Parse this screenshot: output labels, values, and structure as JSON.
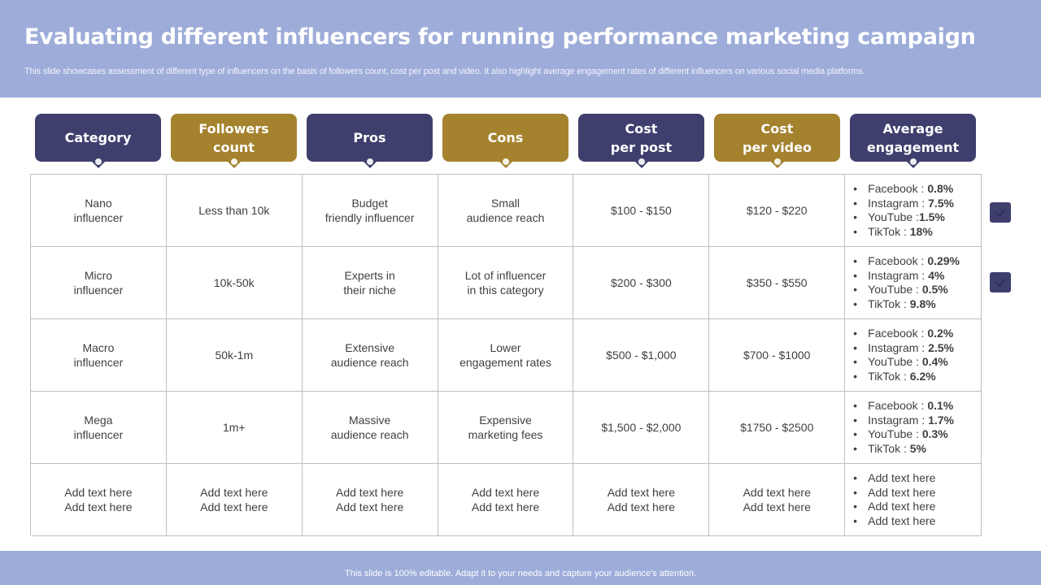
{
  "title": "Evaluating different influencers for running performance marketing campaign",
  "subtitle": "This slide showcases assessment of different type  of influencers on the basis of followers count, cost per post and video. It also highlight average engagement rates of different influencers on various social media platforms.",
  "footer": "This slide is 100% editable. Adapt it to your needs and capture your audience's attention.",
  "colors": {
    "header_band": "#9dacd9",
    "navy": "#3f3f6e",
    "gold": "#a4822e"
  },
  "columns": [
    {
      "label": "Category",
      "style": "navy"
    },
    {
      "label": "Followers\ncount",
      "style": "gold"
    },
    {
      "label": "Pros",
      "style": "navy"
    },
    {
      "label": "Cons",
      "style": "gold"
    },
    {
      "label": "Cost\nper post",
      "style": "navy"
    },
    {
      "label": "Cost\nper video",
      "style": "gold"
    },
    {
      "label": "Average\nengagement",
      "style": "navy"
    }
  ],
  "rows": [
    {
      "category": "Nano\ninfluencer",
      "followers": "Less than 10k",
      "pros": "Budget\nfriendly influencer",
      "cons": "Small\naudience reach",
      "cost_post": "$100 - $150",
      "cost_video": "$120 - $220",
      "engagement": [
        {
          "platform": "Facebook : ",
          "value": "0.8%"
        },
        {
          "platform": "Instagram : ",
          "value": "7.5%"
        },
        {
          "platform": "YouTube :",
          "value": "1.5%"
        },
        {
          "platform": "TikTok : ",
          "value": "18%"
        }
      ]
    },
    {
      "category": "Micro\ninfluencer",
      "followers": "10k-50k",
      "pros": "Experts in\ntheir niche",
      "cons": "Lot of influencer\nin this category",
      "cost_post": "$200 - $300",
      "cost_video": "$350 - $550",
      "engagement": [
        {
          "platform": "Facebook : ",
          "value": "0.29%"
        },
        {
          "platform": "Instagram : ",
          "value": "4%"
        },
        {
          "platform": "YouTube : ",
          "value": "0.5%"
        },
        {
          "platform": "TikTok : ",
          "value": "9.8%"
        }
      ]
    },
    {
      "category": "Macro\ninfluencer",
      "followers": "50k-1m",
      "pros": "Extensive\naudience reach",
      "cons": "Lower\nengagement rates",
      "cost_post": "$500 - $1,000",
      "cost_video": "$700 - $1000",
      "engagement": [
        {
          "platform": "Facebook : ",
          "value": "0.2%"
        },
        {
          "platform": "Instagram : ",
          "value": "2.5%"
        },
        {
          "platform": "YouTube : ",
          "value": "0.4%"
        },
        {
          "platform": "TikTok : ",
          "value": "6.2%"
        }
      ]
    },
    {
      "category": "Mega\ninfluencer",
      "followers": "1m+",
      "pros": "Massive\naudience reach",
      "cons": "Expensive\nmarketing fees",
      "cost_post": "$1,500 - $2,000",
      "cost_video": "$1750 - $2500",
      "engagement": [
        {
          "platform": "Facebook : ",
          "value": "0.1%"
        },
        {
          "platform": "Instagram : ",
          "value": "1.7%"
        },
        {
          "platform": "YouTube : ",
          "value": "0.3%"
        },
        {
          "platform": "TikTok : ",
          "value": "5%"
        }
      ]
    },
    {
      "category": "Add text here\nAdd text here",
      "followers": "Add text here\nAdd text here",
      "pros": "Add text here\nAdd text here",
      "cons": "Add text here\nAdd text here",
      "cost_post": "Add text here\nAdd text here",
      "cost_video": "Add text here\nAdd text here",
      "engagement": [
        {
          "platform": "Add text here",
          "value": ""
        },
        {
          "platform": "Add text here",
          "value": ""
        },
        {
          "platform": "Add text here",
          "value": ""
        },
        {
          "platform": "Add text here",
          "value": ""
        }
      ]
    }
  ],
  "side_buttons": [
    {
      "icon": "check-icon"
    },
    {
      "icon": "check-icon"
    }
  ]
}
